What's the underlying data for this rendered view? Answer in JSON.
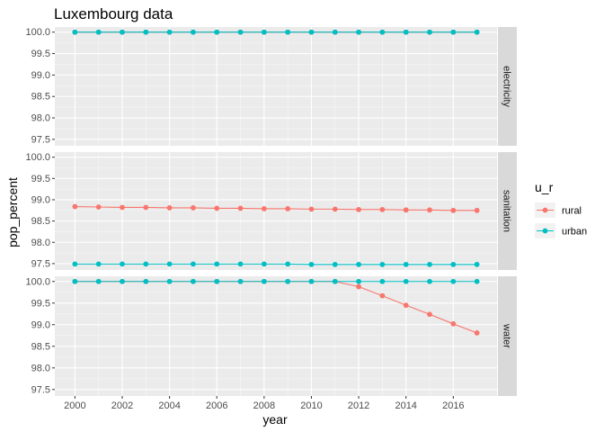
{
  "chart_data": {
    "type": "line",
    "title": "Luxembourg data",
    "xlabel": "year",
    "ylabel": "pop_percent",
    "x": [
      2000,
      2001,
      2002,
      2003,
      2004,
      2005,
      2006,
      2007,
      2008,
      2009,
      2010,
      2011,
      2012,
      2013,
      2014,
      2015,
      2016,
      2017
    ],
    "x_ticks": [
      "2000",
      "2002",
      "2004",
      "2006",
      "2008",
      "2010",
      "2012",
      "2014",
      "2016"
    ],
    "y_ticks": [
      "97.5",
      "98.0",
      "98.5",
      "99.0",
      "99.5",
      "100.0"
    ],
    "ylim": [
      97.35,
      100.12
    ],
    "xlim": [
      1999.15,
      2017.85
    ],
    "grid": true,
    "legend": {
      "title": "u_r",
      "position": "right",
      "entries": [
        {
          "label": "rural",
          "color": "#F8766D"
        },
        {
          "label": "urban",
          "color": "#00BFC4"
        }
      ]
    },
    "facets": [
      {
        "label": "electricity",
        "series": [
          {
            "name": "rural",
            "color": "#F8766D",
            "values": [
              100,
              100,
              100,
              100,
              100,
              100,
              100,
              100,
              100,
              100,
              100,
              100,
              100,
              100,
              100,
              100,
              100,
              100
            ]
          },
          {
            "name": "urban",
            "color": "#00BFC4",
            "values": [
              100,
              100,
              100,
              100,
              100,
              100,
              100,
              100,
              100,
              100,
              100,
              100,
              100,
              100,
              100,
              100,
              100,
              100
            ]
          }
        ]
      },
      {
        "label": "sanitation",
        "series": [
          {
            "name": "rural",
            "color": "#F8766D",
            "values": [
              98.84,
              98.83,
              98.82,
              98.82,
              98.81,
              98.81,
              98.8,
              98.8,
              98.79,
              98.79,
              98.78,
              98.78,
              98.77,
              98.77,
              98.76,
              98.76,
              98.75,
              98.75
            ]
          },
          {
            "name": "urban",
            "color": "#00BFC4",
            "values": [
              97.49,
              97.49,
              97.49,
              97.49,
              97.49,
              97.49,
              97.49,
              97.49,
              97.49,
              97.49,
              97.48,
              97.48,
              97.48,
              97.48,
              97.48,
              97.48,
              97.48,
              97.48
            ]
          }
        ]
      },
      {
        "label": "water",
        "series": [
          {
            "name": "rural",
            "color": "#F8766D",
            "values": [
              100,
              100,
              100,
              100,
              100,
              100,
              100,
              100,
              100,
              100,
              100,
              100,
              99.88,
              99.67,
              99.45,
              99.24,
              99.02,
              98.81
            ]
          },
          {
            "name": "urban",
            "color": "#00BFC4",
            "values": [
              100,
              100,
              100,
              100,
              100,
              100,
              100,
              100,
              100,
              100,
              100,
              100,
              100,
              100,
              100,
              100,
              100,
              100
            ]
          }
        ]
      }
    ]
  }
}
